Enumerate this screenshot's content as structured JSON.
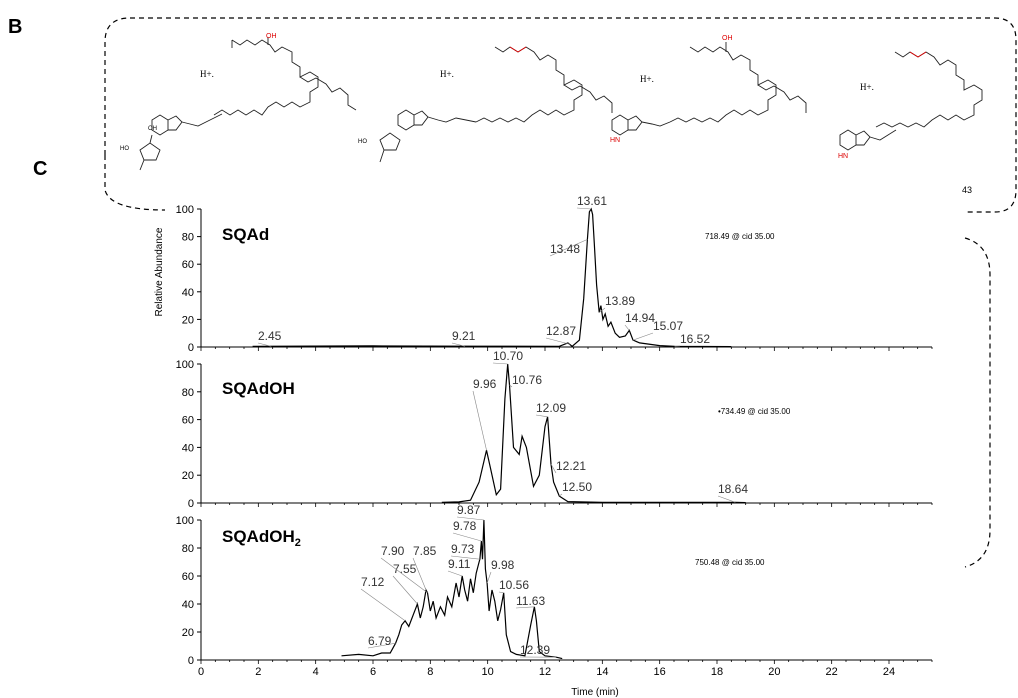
{
  "panels": {
    "b": "B",
    "c": "C"
  },
  "structures": {
    "hplus": "H+.",
    "atoms": {
      "oh": "OH",
      "ho": "HO",
      "n": "N",
      "h": "H",
      "hn": "HN",
      "o": "O"
    },
    "partial_label": "43"
  },
  "chart_data": [
    {
      "type": "line",
      "title": "SQAd",
      "ion_label": "718.49 @ cid 35.00",
      "ylabel": "Relative Abundance",
      "xlim": [
        0,
        25.5
      ],
      "ylim": [
        0,
        100
      ],
      "x_ticks": [
        0,
        2,
        4,
        6,
        8,
        10,
        12,
        14,
        16,
        18,
        20,
        22,
        24
      ],
      "y_ticks": [
        0,
        20,
        40,
        60,
        80,
        100
      ],
      "peaks": [
        {
          "label": "2.45",
          "x": 2.45,
          "y": 0.5
        },
        {
          "label": "9.21",
          "x": 9.21,
          "y": 0.5
        },
        {
          "label": "12.87",
          "x": 12.87,
          "y": 2
        },
        {
          "label": "13.48",
          "x": 13.48,
          "y": 78
        },
        {
          "label": "13.61",
          "x": 13.61,
          "y": 100
        },
        {
          "label": "13.89",
          "x": 13.89,
          "y": 25
        },
        {
          "label": "14.94",
          "x": 14.94,
          "y": 12
        },
        {
          "label": "15.07",
          "x": 15.07,
          "y": 5
        },
        {
          "label": "16.52",
          "x": 16.52,
          "y": 0.5
        }
      ],
      "trace": [
        [
          1.8,
          0.4
        ],
        [
          6,
          0.8
        ],
        [
          9.5,
          0.6
        ],
        [
          12.5,
          0.5
        ],
        [
          12.8,
          3
        ],
        [
          12.95,
          0.5
        ],
        [
          13.2,
          5
        ],
        [
          13.35,
          35
        ],
        [
          13.48,
          78
        ],
        [
          13.55,
          98
        ],
        [
          13.61,
          100
        ],
        [
          13.66,
          96
        ],
        [
          13.72,
          75
        ],
        [
          13.8,
          45
        ],
        [
          13.89,
          25
        ],
        [
          13.95,
          30
        ],
        [
          14.02,
          20
        ],
        [
          14.1,
          24
        ],
        [
          14.2,
          15
        ],
        [
          14.3,
          18
        ],
        [
          14.45,
          10
        ],
        [
          14.6,
          7
        ],
        [
          14.8,
          8
        ],
        [
          14.94,
          12
        ],
        [
          15.07,
          5
        ],
        [
          15.3,
          3
        ],
        [
          16,
          1
        ],
        [
          16.52,
          0.5
        ],
        [
          18.5,
          0.3
        ]
      ]
    },
    {
      "type": "line",
      "title": "SQAdOH",
      "ion_label": "•734.49 @ cid 35.00",
      "xlim": [
        0,
        25.5
      ],
      "ylim": [
        0,
        100
      ],
      "x_ticks": [
        0,
        2,
        4,
        6,
        8,
        10,
        12,
        14,
        16,
        18,
        20,
        22,
        24
      ],
      "y_ticks": [
        0,
        20,
        40,
        60,
        80,
        100
      ],
      "peaks": [
        {
          "label": "9.96",
          "x": 9.96,
          "y": 38
        },
        {
          "label": "10.70",
          "x": 10.7,
          "y": 100
        },
        {
          "label": "10.76",
          "x": 10.76,
          "y": 85
        },
        {
          "label": "12.09",
          "x": 12.09,
          "y": 62
        },
        {
          "label": "12.21",
          "x": 12.21,
          "y": 28
        },
        {
          "label": "12.50",
          "x": 12.5,
          "y": 5
        },
        {
          "label": "18.64",
          "x": 18.64,
          "y": 0.5
        }
      ],
      "trace": [
        [
          8.4,
          0.5
        ],
        [
          9,
          0.8
        ],
        [
          9.4,
          2
        ],
        [
          9.7,
          15
        ],
        [
          9.96,
          38
        ],
        [
          10.1,
          25
        ],
        [
          10.3,
          6
        ],
        [
          10.45,
          10
        ],
        [
          10.6,
          75
        ],
        [
          10.7,
          100
        ],
        [
          10.76,
          85
        ],
        [
          10.9,
          40
        ],
        [
          11.1,
          35
        ],
        [
          11.2,
          48
        ],
        [
          11.35,
          40
        ],
        [
          11.6,
          12
        ],
        [
          11.8,
          20
        ],
        [
          12.0,
          55
        ],
        [
          12.09,
          62
        ],
        [
          12.15,
          45
        ],
        [
          12.21,
          28
        ],
        [
          12.3,
          15
        ],
        [
          12.5,
          5
        ],
        [
          12.8,
          1
        ],
        [
          14,
          0.5
        ],
        [
          18.64,
          0.5
        ],
        [
          19,
          0.3
        ]
      ]
    },
    {
      "type": "line",
      "title": "SQAdOH",
      "title_sub": "2",
      "ion_label": "750.48 @ cid 35.00",
      "xlabel": "Time (min)",
      "xlim": [
        0,
        25.5
      ],
      "ylim": [
        0,
        100
      ],
      "x_ticks": [
        0,
        2,
        4,
        6,
        8,
        10,
        12,
        14,
        16,
        18,
        20,
        22,
        24
      ],
      "y_ticks": [
        0,
        20,
        40,
        60,
        80,
        100
      ],
      "peaks": [
        {
          "label": "6.79",
          "x": 6.79,
          "y": 12
        },
        {
          "label": "7.12",
          "x": 7.12,
          "y": 28
        },
        {
          "label": "7.55",
          "x": 7.55,
          "y": 40
        },
        {
          "label": "7.90",
          "x": 7.9,
          "y": 48
        },
        {
          "label": "7.85",
          "x": 7.85,
          "y": 50
        },
        {
          "label": "9.11",
          "x": 9.11,
          "y": 60
        },
        {
          "label": "9.73",
          "x": 9.73,
          "y": 72
        },
        {
          "label": "9.78",
          "x": 9.78,
          "y": 85
        },
        {
          "label": "9.87",
          "x": 9.87,
          "y": 100
        },
        {
          "label": "9.98",
          "x": 9.98,
          "y": 55
        },
        {
          "label": "10.56",
          "x": 10.56,
          "y": 48
        },
        {
          "label": "11.63",
          "x": 11.63,
          "y": 38
        },
        {
          "label": "12.39",
          "x": 12.39,
          "y": 2
        }
      ],
      "trace": [
        [
          4.9,
          3
        ],
        [
          5.5,
          4
        ],
        [
          6.0,
          3
        ],
        [
          6.3,
          5
        ],
        [
          6.6,
          5
        ],
        [
          6.79,
          12
        ],
        [
          6.9,
          18
        ],
        [
          7.0,
          25
        ],
        [
          7.12,
          28
        ],
        [
          7.25,
          24
        ],
        [
          7.4,
          32
        ],
        [
          7.55,
          40
        ],
        [
          7.65,
          30
        ],
        [
          7.75,
          38
        ],
        [
          7.85,
          50
        ],
        [
          7.9,
          48
        ],
        [
          8.0,
          35
        ],
        [
          8.1,
          42
        ],
        [
          8.2,
          30
        ],
        [
          8.35,
          38
        ],
        [
          8.5,
          32
        ],
        [
          8.6,
          45
        ],
        [
          8.75,
          38
        ],
        [
          8.9,
          55
        ],
        [
          9.0,
          45
        ],
        [
          9.11,
          60
        ],
        [
          9.2,
          50
        ],
        [
          9.3,
          42
        ],
        [
          9.4,
          58
        ],
        [
          9.5,
          48
        ],
        [
          9.6,
          62
        ],
        [
          9.7,
          70
        ],
        [
          9.73,
          72
        ],
        [
          9.78,
          85
        ],
        [
          9.82,
          72
        ],
        [
          9.87,
          100
        ],
        [
          9.92,
          65
        ],
        [
          9.98,
          55
        ],
        [
          10.05,
          35
        ],
        [
          10.15,
          50
        ],
        [
          10.25,
          42
        ],
        [
          10.35,
          28
        ],
        [
          10.45,
          36
        ],
        [
          10.56,
          48
        ],
        [
          10.65,
          18
        ],
        [
          10.8,
          6
        ],
        [
          11.0,
          4
        ],
        [
          11.3,
          3
        ],
        [
          11.5,
          25
        ],
        [
          11.63,
          38
        ],
        [
          11.7,
          28
        ],
        [
          11.8,
          6
        ],
        [
          12.0,
          3
        ],
        [
          12.39,
          2
        ],
        [
          12.6,
          1
        ]
      ]
    }
  ]
}
